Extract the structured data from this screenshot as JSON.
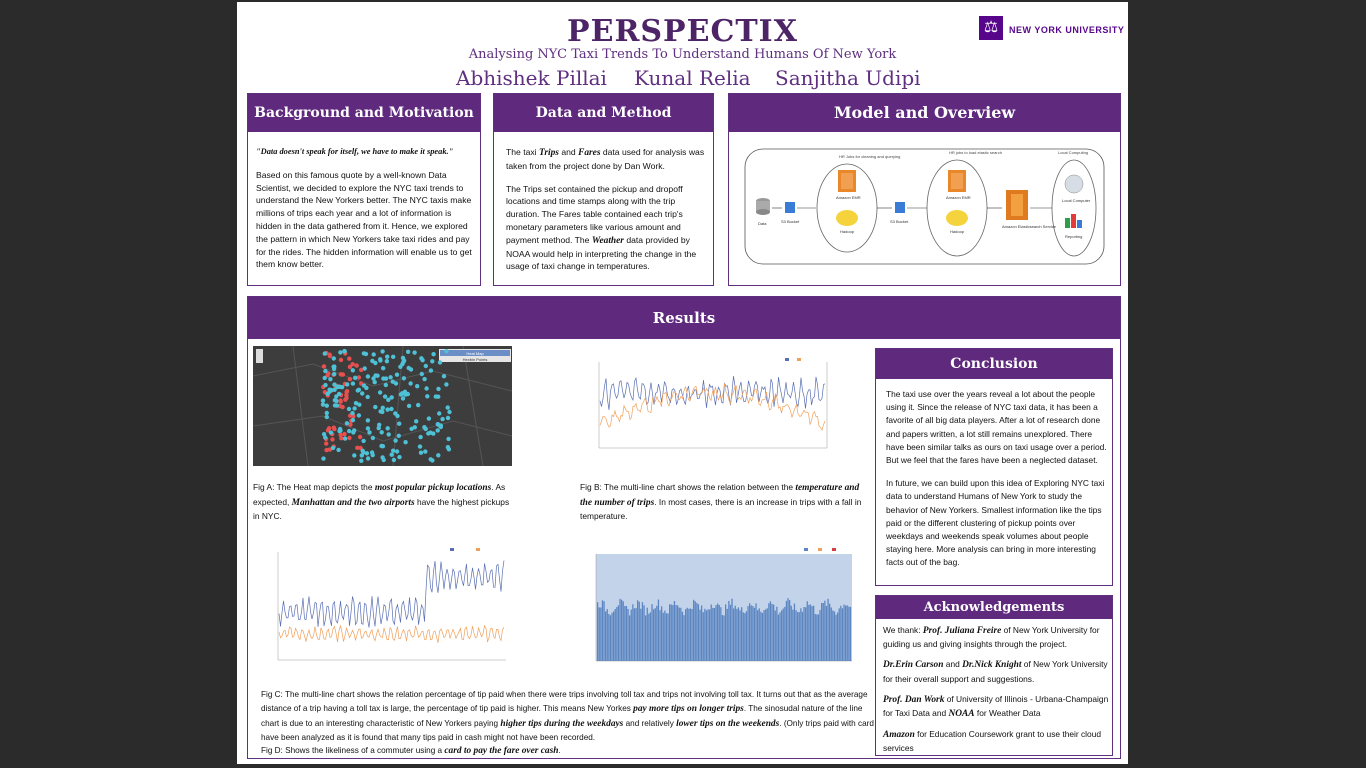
{
  "header": {
    "title": "PERSPECTIX",
    "subtitle": "Analysing NYC Taxi Trends To Understand Humans Of New York",
    "authors": [
      "Abhishek Pillai",
      "Kunal Relia",
      "Sanjitha Udipi"
    ],
    "logo_text": "NEW YORK UNIVERSITY",
    "logo_icon": "nyu-torch-icon"
  },
  "background": {
    "title": "Background and Motivation",
    "quote": "\"Data doesn't speak for itself, we have to make it speak.\"",
    "body": "Based on this famous quote by a well-known Data Scientist, we decided to explore the NYC taxi trends to understand the New Yorkers better. The NYC taxis make millions of trips each year and a lot of information is hidden in the data gathered from it. Hence, we explored the pattern in which New Yorkers take taxi rides and pay for the rides. The hidden information will enable us to get them know better."
  },
  "data_method": {
    "title": "Data and Method",
    "p1_a": "The taxi ",
    "p1_trips": "Trips",
    "p1_b": " and ",
    "p1_fares": "Fares",
    "p1_c": " data used for analysis was taken from the project done by Dan Work.",
    "p2_a": "The Trips set contained the pickup and dropoff locations and time stamps along with the trip duration. The Fares table contained each trip's monetary parameters like various amount and payment method. The ",
    "p2_weather": "Weather",
    "p2_b": " data provided by NOAA would help in interpreting the change in the usage of taxi change in temperatures."
  },
  "model": {
    "title": "Model and Overview",
    "group1": "HR Jobs for cleaning and querying",
    "group2": "HR jobs to load elastic search",
    "group3": "Local Computing",
    "nodes": [
      "Data",
      "S3 Bucket",
      "Amazon EMR",
      "Hadoop",
      "S3 Bucket",
      "Amazon EMR",
      "Hadoop",
      "Amazon Elasticsearch Service",
      "Local Computer",
      "Reporting"
    ]
  },
  "results": {
    "title": "Results",
    "fig_a_legend": [
      "Heat Map",
      "Hexbin Points"
    ],
    "fig_a_caption_a": "Fig A:  The Heat map depicts the ",
    "fig_a_caption_b": "most popular pickup locations",
    "fig_a_caption_c": ". As expected, ",
    "fig_a_caption_d": "Manhattan and the two airports",
    "fig_a_caption_e": " have the highest pickups in NYC.",
    "fig_b_caption_a": "Fig B:  The multi-line chart shows the relation between the ",
    "fig_b_caption_b": "temperature and the number of trips",
    "fig_b_caption_c": ". In most cases, there is an increase in trips with a fall in temperature.",
    "fig_c_caption_a": "Fig C: The multi-line chart shows the relation percentage of tip paid when there were trips involving toll tax and trips not involving toll tax. It turns out that as the average distance of a trip having a toll tax is large, the percentage of tip paid is higher. This means New Yorkes ",
    "fig_c_caption_b": "pay more tips on longer trips",
    "fig_c_caption_c": ". The sinosudal nature of the line chart is due to an interesting characteristic of New Yorkers paying ",
    "fig_c_caption_d": "higher tips during the weekdays",
    "fig_c_caption_e": " and relatively ",
    "fig_c_caption_f": "lower tips on the weekends",
    "fig_c_caption_g": ". (Only trips paid with card have been analyzed as it is found that many tips paid in cash might not have been recorded.",
    "fig_d_caption_a": "Fig D: Shows the likeliness of a commuter using a ",
    "fig_d_caption_b": "card to pay the fare over cash",
    "fig_d_caption_c": "."
  },
  "conclusion": {
    "title": "Conclusion",
    "p1": "The taxi use over the years reveal a lot about the people using it. Since the release of NYC taxi data, it has been a favorite of all big data players. After a lot of research done and papers written, a lot still remains unexplored. There have been similar talks as ours on taxi usage over a period. But we feel that the fares have been a neglected dataset.",
    "p2": "In future, we can build upon this idea of Exploring NYC taxi data to understand Humans of New York to study the behavior of New Yorkers. Smallest information like the tips paid or the different clustering of pickup points over weekdays and weekends speak volumes about people staying here. More analysis can bring in more interesting facts out of the bag."
  },
  "ack": {
    "title": "Acknowledgements",
    "l1_a": "We thank: ",
    "l1_b": "Prof. Juliana Freire",
    "l1_c": " of New York University for guiding us and giving insights through the project.",
    "l2_a": "Dr.Erin Carson",
    "l2_b": " and ",
    "l2_c": "Dr.Nick Knight",
    "l2_d": " of New York University for their overall support and suggestions.",
    "l3_a": "Prof. Dan Work",
    "l3_b": " of University of Illinois - Urbana-Champaign for Taxi Data and ",
    "l3_c": "NOAA",
    "l3_d": " for Weather Data",
    "l4_a": "Amazon",
    "l4_b": " for Education Coursework grant to use their cloud services"
  },
  "colors": {
    "purple": "#5f2a7d",
    "nyu_purple": "#57068c",
    "blue_line": "#5a6fb3",
    "orange_line": "#f0a05a",
    "bar_blue": "#5b86c2"
  }
}
